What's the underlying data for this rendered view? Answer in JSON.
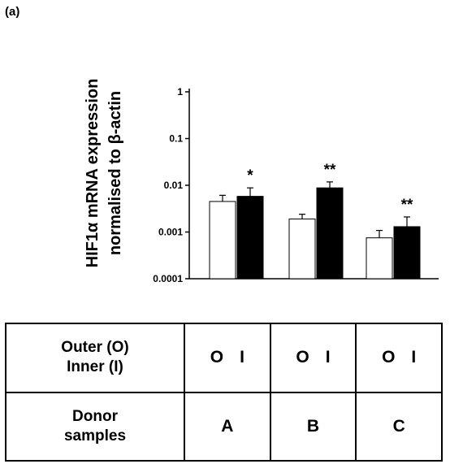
{
  "panel_label": "(a)",
  "chart_data": {
    "type": "bar",
    "ylabel_lines": [
      "HIF1α mRNA expression",
      "normalised to β-actin"
    ],
    "yscale": "log",
    "ylim": [
      0.0001,
      1
    ],
    "yticks": [
      {
        "value": 0.0001,
        "label": "0.0001"
      },
      {
        "value": 0.001,
        "label": "0.001"
      },
      {
        "value": 0.01,
        "label": "0.01"
      },
      {
        "value": 0.1,
        "label": "0.1"
      },
      {
        "value": 1,
        "label": "1"
      }
    ],
    "categories": [
      "A",
      "B",
      "C"
    ],
    "series": [
      {
        "key": "O",
        "color": "#ffffff",
        "values": [
          0.0045,
          0.0019,
          0.00075
        ],
        "errors": [
          0.0061,
          0.0024,
          0.00108
        ]
      },
      {
        "key": "I",
        "color": "#000000",
        "values": [
          0.0058,
          0.0088,
          0.0013
        ],
        "errors": [
          0.0088,
          0.0118,
          0.0021
        ]
      }
    ],
    "annotations": [
      "*",
      "**",
      "**"
    ],
    "grid": false,
    "legend": "none"
  },
  "table": {
    "row1_label_line1": "Outer (O)",
    "row1_label_line2": "Inner (I)",
    "row2_label_line1": "Donor",
    "row2_label_line2": "samples",
    "columns": [
      {
        "outer": "O",
        "inner": "I",
        "donor": "A"
      },
      {
        "outer": "O",
        "inner": "I",
        "donor": "B"
      },
      {
        "outer": "O",
        "inner": "I",
        "donor": "C"
      }
    ]
  }
}
